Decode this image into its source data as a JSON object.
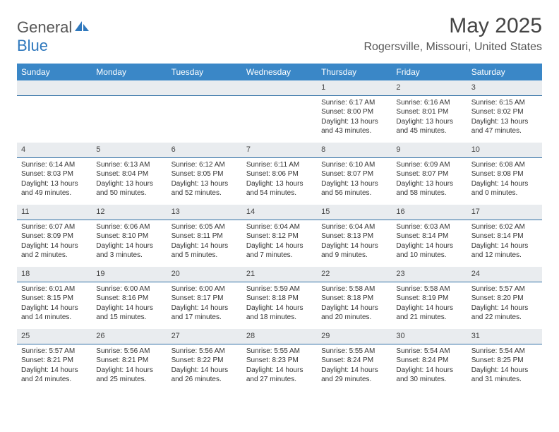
{
  "logo": {
    "text_general": "General",
    "text_blue": "Blue"
  },
  "title": "May 2025",
  "location": "Rogersville, Missouri, United States",
  "colors": {
    "header_bg": "#3a87c7",
    "header_text": "#ffffff",
    "band_bg": "#e9ecef",
    "band_border": "#2f6fa5",
    "page_bg": "#ffffff",
    "text": "#333333",
    "logo_gray": "#555555",
    "logo_blue": "#2f78bd"
  },
  "weekdays": [
    "Sunday",
    "Monday",
    "Tuesday",
    "Wednesday",
    "Thursday",
    "Friday",
    "Saturday"
  ],
  "weeks": [
    [
      null,
      null,
      null,
      null,
      {
        "day": "1",
        "sunrise": "Sunrise: 6:17 AM",
        "sunset": "Sunset: 8:00 PM",
        "daylight": "Daylight: 13 hours and 43 minutes."
      },
      {
        "day": "2",
        "sunrise": "Sunrise: 6:16 AM",
        "sunset": "Sunset: 8:01 PM",
        "daylight": "Daylight: 13 hours and 45 minutes."
      },
      {
        "day": "3",
        "sunrise": "Sunrise: 6:15 AM",
        "sunset": "Sunset: 8:02 PM",
        "daylight": "Daylight: 13 hours and 47 minutes."
      }
    ],
    [
      {
        "day": "4",
        "sunrise": "Sunrise: 6:14 AM",
        "sunset": "Sunset: 8:03 PM",
        "daylight": "Daylight: 13 hours and 49 minutes."
      },
      {
        "day": "5",
        "sunrise": "Sunrise: 6:13 AM",
        "sunset": "Sunset: 8:04 PM",
        "daylight": "Daylight: 13 hours and 50 minutes."
      },
      {
        "day": "6",
        "sunrise": "Sunrise: 6:12 AM",
        "sunset": "Sunset: 8:05 PM",
        "daylight": "Daylight: 13 hours and 52 minutes."
      },
      {
        "day": "7",
        "sunrise": "Sunrise: 6:11 AM",
        "sunset": "Sunset: 8:06 PM",
        "daylight": "Daylight: 13 hours and 54 minutes."
      },
      {
        "day": "8",
        "sunrise": "Sunrise: 6:10 AM",
        "sunset": "Sunset: 8:07 PM",
        "daylight": "Daylight: 13 hours and 56 minutes."
      },
      {
        "day": "9",
        "sunrise": "Sunrise: 6:09 AM",
        "sunset": "Sunset: 8:07 PM",
        "daylight": "Daylight: 13 hours and 58 minutes."
      },
      {
        "day": "10",
        "sunrise": "Sunrise: 6:08 AM",
        "sunset": "Sunset: 8:08 PM",
        "daylight": "Daylight: 14 hours and 0 minutes."
      }
    ],
    [
      {
        "day": "11",
        "sunrise": "Sunrise: 6:07 AM",
        "sunset": "Sunset: 8:09 PM",
        "daylight": "Daylight: 14 hours and 2 minutes."
      },
      {
        "day": "12",
        "sunrise": "Sunrise: 6:06 AM",
        "sunset": "Sunset: 8:10 PM",
        "daylight": "Daylight: 14 hours and 3 minutes."
      },
      {
        "day": "13",
        "sunrise": "Sunrise: 6:05 AM",
        "sunset": "Sunset: 8:11 PM",
        "daylight": "Daylight: 14 hours and 5 minutes."
      },
      {
        "day": "14",
        "sunrise": "Sunrise: 6:04 AM",
        "sunset": "Sunset: 8:12 PM",
        "daylight": "Daylight: 14 hours and 7 minutes."
      },
      {
        "day": "15",
        "sunrise": "Sunrise: 6:04 AM",
        "sunset": "Sunset: 8:13 PM",
        "daylight": "Daylight: 14 hours and 9 minutes."
      },
      {
        "day": "16",
        "sunrise": "Sunrise: 6:03 AM",
        "sunset": "Sunset: 8:14 PM",
        "daylight": "Daylight: 14 hours and 10 minutes."
      },
      {
        "day": "17",
        "sunrise": "Sunrise: 6:02 AM",
        "sunset": "Sunset: 8:14 PM",
        "daylight": "Daylight: 14 hours and 12 minutes."
      }
    ],
    [
      {
        "day": "18",
        "sunrise": "Sunrise: 6:01 AM",
        "sunset": "Sunset: 8:15 PM",
        "daylight": "Daylight: 14 hours and 14 minutes."
      },
      {
        "day": "19",
        "sunrise": "Sunrise: 6:00 AM",
        "sunset": "Sunset: 8:16 PM",
        "daylight": "Daylight: 14 hours and 15 minutes."
      },
      {
        "day": "20",
        "sunrise": "Sunrise: 6:00 AM",
        "sunset": "Sunset: 8:17 PM",
        "daylight": "Daylight: 14 hours and 17 minutes."
      },
      {
        "day": "21",
        "sunrise": "Sunrise: 5:59 AM",
        "sunset": "Sunset: 8:18 PM",
        "daylight": "Daylight: 14 hours and 18 minutes."
      },
      {
        "day": "22",
        "sunrise": "Sunrise: 5:58 AM",
        "sunset": "Sunset: 8:18 PM",
        "daylight": "Daylight: 14 hours and 20 minutes."
      },
      {
        "day": "23",
        "sunrise": "Sunrise: 5:58 AM",
        "sunset": "Sunset: 8:19 PM",
        "daylight": "Daylight: 14 hours and 21 minutes."
      },
      {
        "day": "24",
        "sunrise": "Sunrise: 5:57 AM",
        "sunset": "Sunset: 8:20 PM",
        "daylight": "Daylight: 14 hours and 22 minutes."
      }
    ],
    [
      {
        "day": "25",
        "sunrise": "Sunrise: 5:57 AM",
        "sunset": "Sunset: 8:21 PM",
        "daylight": "Daylight: 14 hours and 24 minutes."
      },
      {
        "day": "26",
        "sunrise": "Sunrise: 5:56 AM",
        "sunset": "Sunset: 8:21 PM",
        "daylight": "Daylight: 14 hours and 25 minutes."
      },
      {
        "day": "27",
        "sunrise": "Sunrise: 5:56 AM",
        "sunset": "Sunset: 8:22 PM",
        "daylight": "Daylight: 14 hours and 26 minutes."
      },
      {
        "day": "28",
        "sunrise": "Sunrise: 5:55 AM",
        "sunset": "Sunset: 8:23 PM",
        "daylight": "Daylight: 14 hours and 27 minutes."
      },
      {
        "day": "29",
        "sunrise": "Sunrise: 5:55 AM",
        "sunset": "Sunset: 8:24 PM",
        "daylight": "Daylight: 14 hours and 29 minutes."
      },
      {
        "day": "30",
        "sunrise": "Sunrise: 5:54 AM",
        "sunset": "Sunset: 8:24 PM",
        "daylight": "Daylight: 14 hours and 30 minutes."
      },
      {
        "day": "31",
        "sunrise": "Sunrise: 5:54 AM",
        "sunset": "Sunset: 8:25 PM",
        "daylight": "Daylight: 14 hours and 31 minutes."
      }
    ]
  ]
}
